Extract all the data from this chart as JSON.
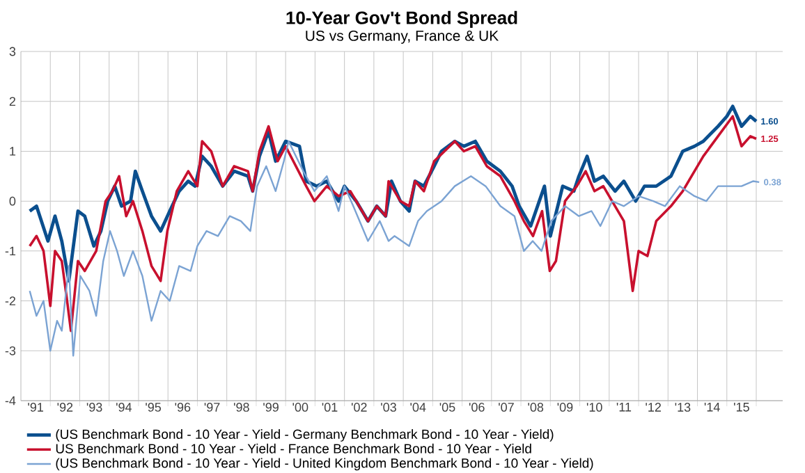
{
  "chart_data": {
    "type": "line",
    "title": "10-Year Gov't Bond Spread",
    "subtitle": "US vs Germany, France & UK",
    "xlim": [
      1990.5,
      2016.4
    ],
    "ylim": [
      -4,
      3
    ],
    "yticks": [
      -4,
      -3,
      -2,
      -1,
      0,
      1,
      2,
      3
    ],
    "xticks": [
      {
        "value": 1991,
        "label": "'91"
      },
      {
        "value": 1992,
        "label": "'92"
      },
      {
        "value": 1993,
        "label": "'93"
      },
      {
        "value": 1994,
        "label": "'94"
      },
      {
        "value": 1995,
        "label": "'95"
      },
      {
        "value": 1996,
        "label": "'96"
      },
      {
        "value": 1997,
        "label": "'97"
      },
      {
        "value": 1998,
        "label": "'98"
      },
      {
        "value": 1999,
        "label": "'99"
      },
      {
        "value": 2000,
        "label": "'00"
      },
      {
        "value": 2001,
        "label": "'01"
      },
      {
        "value": 2002,
        "label": "'02"
      },
      {
        "value": 2003,
        "label": "'03"
      },
      {
        "value": 2004,
        "label": "'04"
      },
      {
        "value": 2005,
        "label": "'05"
      },
      {
        "value": 2006,
        "label": "'06"
      },
      {
        "value": 2007,
        "label": "'07"
      },
      {
        "value": 2008,
        "label": "'08"
      },
      {
        "value": 2009,
        "label": "'09"
      },
      {
        "value": 2010,
        "label": "'10"
      },
      {
        "value": 2011,
        "label": "'11"
      },
      {
        "value": 2012,
        "label": "'12"
      },
      {
        "value": 2013,
        "label": "'13"
      },
      {
        "value": 2014,
        "label": "'14"
      },
      {
        "value": 2015,
        "label": "'15"
      },
      {
        "value": 1991.5,
        "label": null
      },
      {
        "value": 1992.5,
        "label": null
      },
      {
        "value": 1993.5,
        "label": null
      },
      {
        "value": 1994.5,
        "label": null
      },
      {
        "value": 1995.5,
        "label": null
      },
      {
        "value": 1996.5,
        "label": null
      },
      {
        "value": 1997.5,
        "label": null
      },
      {
        "value": 1998.5,
        "label": null
      },
      {
        "value": 1999.5,
        "label": null
      },
      {
        "value": 2000.5,
        "label": null
      },
      {
        "value": 2001.5,
        "label": null
      },
      {
        "value": 2002.5,
        "label": null
      },
      {
        "value": 2003.5,
        "label": null
      },
      {
        "value": 2004.5,
        "label": null
      },
      {
        "value": 2005.5,
        "label": null
      },
      {
        "value": 2006.5,
        "label": null
      },
      {
        "value": 2007.5,
        "label": null
      },
      {
        "value": 2008.5,
        "label": null
      },
      {
        "value": 2009.5,
        "label": null
      },
      {
        "value": 2010.5,
        "label": null
      },
      {
        "value": 2011.5,
        "label": null
      },
      {
        "value": 2012.5,
        "label": null
      },
      {
        "value": 2013.5,
        "label": null
      },
      {
        "value": 2014.5,
        "label": null
      },
      {
        "value": 2015.5,
        "label": null
      }
    ],
    "grid": true,
    "legend": "bottom",
    "marker": "none",
    "line_style": "solid",
    "series": [
      {
        "name": "(US Benchmark Bond - 10 Year - Yield - Germany Benchmark Bond - 10 Year - Yield)",
        "color": "#0b4f8e",
        "x": [
          1990.8,
          1991.03,
          1991.42,
          1991.66,
          1991.89,
          1992.13,
          1992.44,
          1992.67,
          1992.98,
          1993.22,
          1993.45,
          1993.69,
          1993.92,
          1994.23,
          1994.39,
          1994.63,
          1994.94,
          1995.25,
          1995.56,
          1995.88,
          1996.19,
          1996.42,
          1996.66,
          1996.97,
          1997.36,
          1997.75,
          1998.22,
          1998.38,
          1998.61,
          1998.92,
          1999.16,
          1999.5,
          1999.97,
          2000.2,
          2000.56,
          2000.9,
          2001.3,
          2001.5,
          2001.9,
          2002.3,
          2002.6,
          2002.9,
          2003.1,
          2003.4,
          2003.7,
          2003.9,
          2004.2,
          2004.55,
          2004.8,
          2005.25,
          2005.56,
          2005.95,
          2006.34,
          2006.8,
          2007.2,
          2007.44,
          2007.83,
          2008.3,
          2008.5,
          2008.92,
          2009.3,
          2009.47,
          2009.75,
          2010.0,
          2010.3,
          2010.7,
          2011.0,
          2011.4,
          2011.7,
          2012.1,
          2012.6,
          2013.0,
          2013.4,
          2013.7,
          2014.2,
          2014.5,
          2014.7,
          2015.0,
          2015.3,
          2015.5
        ],
        "values": [
          -0.2,
          -0.1,
          -0.8,
          -0.3,
          -0.8,
          -1.6,
          -0.2,
          -0.3,
          -0.9,
          -0.6,
          0.0,
          0.3,
          -0.1,
          0.0,
          0.6,
          0.2,
          -0.3,
          -0.6,
          -0.2,
          0.2,
          0.4,
          0.3,
          0.9,
          0.7,
          0.3,
          0.6,
          0.5,
          0.2,
          0.9,
          1.4,
          0.8,
          1.2,
          1.1,
          0.4,
          0.3,
          0.4,
          0.0,
          0.3,
          0.0,
          -0.4,
          -0.1,
          -0.3,
          0.4,
          0.0,
          -0.2,
          0.4,
          0.3,
          0.7,
          1.0,
          1.2,
          1.1,
          1.2,
          0.8,
          0.6,
          0.3,
          -0.1,
          -0.5,
          0.3,
          -0.7,
          0.3,
          0.2,
          0.5,
          0.9,
          0.4,
          0.5,
          0.2,
          0.4,
          0.0,
          0.3,
          0.3,
          0.5,
          1.0,
          1.1,
          1.2,
          1.5,
          1.7,
          1.9,
          1.5,
          1.7,
          1.6
        ]
      },
      {
        "name": "US Benchmark Bond - 10 Year - Yield - France Benchmark Bond - 10 Year - Yield",
        "color": "#c8102e",
        "x": [
          1990.8,
          1991.03,
          1991.27,
          1991.5,
          1991.66,
          1991.89,
          1992.05,
          1992.2,
          1992.44,
          1992.67,
          1993.06,
          1993.38,
          1993.61,
          1993.84,
          1994.08,
          1994.31,
          1994.63,
          1994.94,
          1995.25,
          1995.48,
          1995.8,
          1996.19,
          1996.5,
          1996.66,
          1996.97,
          1997.36,
          1997.75,
          1998.22,
          1998.38,
          1998.61,
          1998.92,
          1999.23,
          1999.5,
          2000.2,
          2000.48,
          2000.9,
          2001.3,
          2001.7,
          2002.3,
          2002.6,
          2002.9,
          2003.0,
          2003.4,
          2003.7,
          2003.9,
          2004.2,
          2004.55,
          2004.9,
          2005.25,
          2005.56,
          2005.95,
          2006.34,
          2006.8,
          2007.28,
          2007.6,
          2007.91,
          2008.22,
          2008.48,
          2008.69,
          2009.0,
          2009.4,
          2009.7,
          2010.0,
          2010.3,
          2010.7,
          2011.0,
          2011.3,
          2011.5,
          2011.8,
          2012.1,
          2012.6,
          2013.0,
          2013.4,
          2013.7,
          2014.2,
          2014.7,
          2015.0,
          2015.3,
          2015.5
        ],
        "values": [
          -0.9,
          -0.7,
          -1.0,
          -2.1,
          -1.0,
          -1.2,
          -1.9,
          -2.6,
          -1.2,
          -1.4,
          -1.0,
          0.0,
          0.2,
          0.5,
          -0.3,
          0.0,
          -0.6,
          -1.3,
          -1.6,
          -0.6,
          0.2,
          0.6,
          0.3,
          1.2,
          1.0,
          0.3,
          0.7,
          0.6,
          0.2,
          1.0,
          1.5,
          0.8,
          1.1,
          0.3,
          0.0,
          0.3,
          0.1,
          0.2,
          -0.4,
          -0.1,
          -0.3,
          0.4,
          0.0,
          -0.1,
          0.4,
          0.2,
          0.8,
          1.0,
          1.2,
          1.0,
          1.1,
          0.7,
          0.5,
          0.0,
          -0.4,
          -0.7,
          -0.2,
          -1.4,
          -1.2,
          0.0,
          0.3,
          0.6,
          0.2,
          0.3,
          -0.1,
          -0.4,
          -1.8,
          -1.0,
          -1.1,
          -0.4,
          -0.1,
          0.2,
          0.6,
          0.9,
          1.3,
          1.7,
          1.1,
          1.3,
          1.25
        ]
      },
      {
        "name": "(US Benchmark Bond - 10 Year - Yield - United Kingdom Benchmark Bond - 10 Year - Yield)",
        "color": "#7ba3d3",
        "x": [
          1990.8,
          1991.03,
          1991.27,
          1991.5,
          1991.73,
          1991.89,
          1992.13,
          1992.28,
          1992.52,
          1992.83,
          1993.06,
          1993.3,
          1993.53,
          1993.77,
          1994.0,
          1994.31,
          1994.63,
          1994.94,
          1995.25,
          1995.56,
          1995.88,
          1996.27,
          1996.5,
          1996.81,
          1997.2,
          1997.6,
          1997.98,
          1998.3,
          1998.53,
          1998.84,
          1999.16,
          1999.44,
          1999.6,
          2000.1,
          2000.48,
          2000.9,
          2001.3,
          2001.5,
          2001.8,
          2002.3,
          2002.7,
          2003.0,
          2003.2,
          2003.7,
          2004.0,
          2004.3,
          2004.8,
          2005.25,
          2005.8,
          2006.3,
          2006.8,
          2007.28,
          2007.6,
          2007.9,
          2008.2,
          2008.53,
          2009.0,
          2009.47,
          2009.9,
          2010.2,
          2010.6,
          2011.0,
          2011.5,
          2012.0,
          2012.4,
          2012.9,
          2013.4,
          2013.8,
          2014.2,
          2014.5,
          2015.0,
          2015.4,
          2015.6
        ],
        "values": [
          -1.8,
          -2.3,
          -2.0,
          -3.0,
          -2.4,
          -2.6,
          -1.3,
          -3.1,
          -1.5,
          -1.8,
          -2.3,
          -1.2,
          -0.6,
          -1.0,
          -1.5,
          -1.0,
          -1.5,
          -2.4,
          -1.8,
          -2.0,
          -1.3,
          -1.4,
          -0.9,
          -0.6,
          -0.7,
          -0.3,
          -0.4,
          -0.6,
          0.3,
          0.7,
          0.2,
          0.8,
          1.2,
          0.6,
          0.2,
          0.5,
          -0.2,
          0.3,
          -0.1,
          -0.8,
          -0.4,
          -0.8,
          -0.7,
          -0.9,
          -0.4,
          -0.2,
          0.0,
          0.3,
          0.5,
          0.3,
          -0.1,
          -0.3,
          -1.0,
          -0.8,
          -1.0,
          -0.4,
          -0.1,
          -0.3,
          -0.2,
          -0.5,
          0.0,
          -0.1,
          0.1,
          0.0,
          -0.1,
          0.3,
          0.1,
          0.0,
          0.3,
          0.3,
          0.3,
          0.4,
          0.38
        ]
      }
    ],
    "annotations": [
      "1.60",
      "1.25",
      "0.38"
    ]
  }
}
